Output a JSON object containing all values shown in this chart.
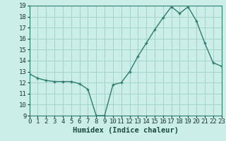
{
  "x": [
    0,
    1,
    2,
    3,
    4,
    5,
    6,
    7,
    8,
    9,
    10,
    11,
    12,
    13,
    14,
    15,
    16,
    17,
    18,
    19,
    20,
    21,
    22,
    23
  ],
  "y": [
    12.8,
    12.4,
    12.2,
    12.1,
    12.1,
    12.1,
    11.9,
    11.4,
    9.0,
    9.0,
    11.8,
    12.0,
    13.0,
    14.4,
    15.6,
    16.8,
    17.9,
    18.9,
    18.3,
    18.9,
    17.6,
    15.6,
    13.8,
    13.5
  ],
  "xlabel": "Humidex (Indice chaleur)",
  "ylim": [
    9,
    19
  ],
  "xlim": [
    0,
    23
  ],
  "yticks": [
    9,
    10,
    11,
    12,
    13,
    14,
    15,
    16,
    17,
    18,
    19
  ],
  "xticks": [
    0,
    1,
    2,
    3,
    4,
    5,
    6,
    7,
    8,
    9,
    10,
    11,
    12,
    13,
    14,
    15,
    16,
    17,
    18,
    19,
    20,
    21,
    22,
    23
  ],
  "line_color": "#2e7d6e",
  "marker": "+",
  "bg_color": "#cceee8",
  "grid_color": "#9ecfc8",
  "tick_label_fontsize": 6.5,
  "xlabel_fontsize": 7.5,
  "font_family": "monospace"
}
